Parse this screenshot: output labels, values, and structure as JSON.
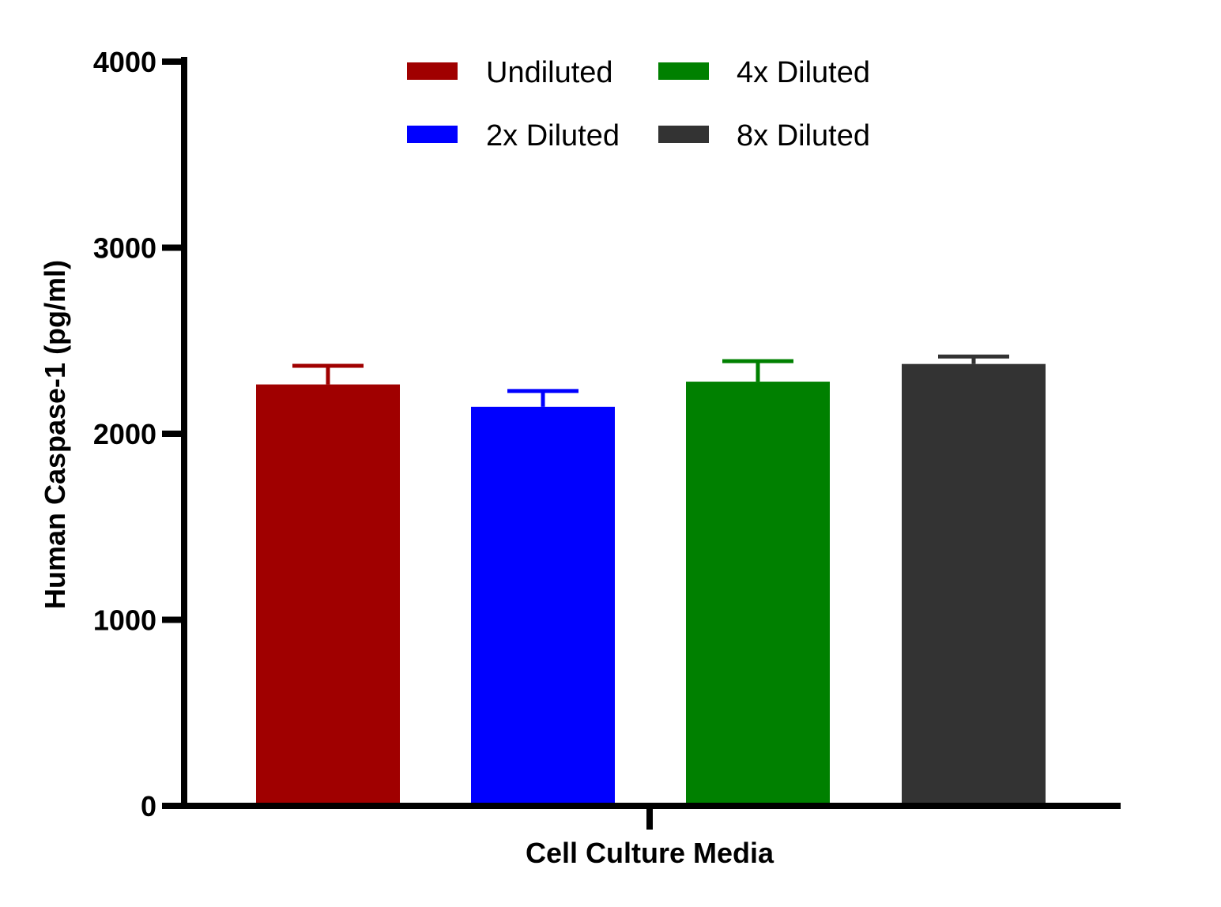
{
  "chart_data": {
    "type": "bar",
    "xlabel": "Cell Culture Media",
    "ylabel": "Human Caspase-1 (pg/ml)",
    "ylim": [
      0,
      4000
    ],
    "yticks": [
      "0",
      "1000",
      "2000",
      "3000",
      "4000"
    ],
    "ytick_values": [
      0,
      1000,
      2000,
      3000,
      4000
    ],
    "categories": [
      "Cell Culture Media"
    ],
    "legend_position": "top",
    "grid": false,
    "series": [
      {
        "name": "Undiluted",
        "values": [
          2265
        ],
        "error": [
          100
        ],
        "color": "#a00000"
      },
      {
        "name": "2x Diluted",
        "values": [
          2145
        ],
        "error": [
          85
        ],
        "color": "#0000ff"
      },
      {
        "name": "4x Diluted",
        "values": [
          2280
        ],
        "error": [
          110
        ],
        "color": "#008000"
      },
      {
        "name": "8x Diluted",
        "values": [
          2375
        ],
        "error": [
          40
        ],
        "color": "#333333"
      }
    ]
  }
}
